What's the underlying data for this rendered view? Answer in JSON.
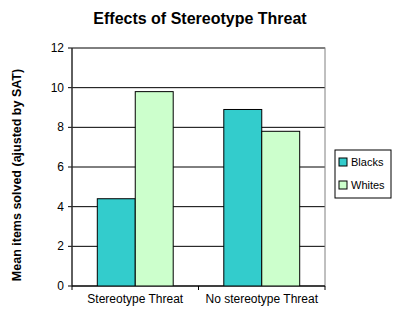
{
  "chart_data": {
    "type": "bar",
    "title": "Effects of Stereotype Threat",
    "y_label": "Mean items solved (ajusted by SAT)",
    "categories": [
      "Stereotype Threat",
      "No stereotype Threat"
    ],
    "series": [
      {
        "name": "Blacks",
        "color": "#33cccc",
        "values": [
          4.4,
          8.9
        ]
      },
      {
        "name": "Whites",
        "color": "#ccffcc",
        "values": [
          9.8,
          7.8
        ]
      }
    ],
    "ylim": [
      0,
      12
    ],
    "yticks": [
      0,
      2,
      4,
      6,
      8,
      10,
      12
    ],
    "grid": true,
    "legend": "right"
  }
}
